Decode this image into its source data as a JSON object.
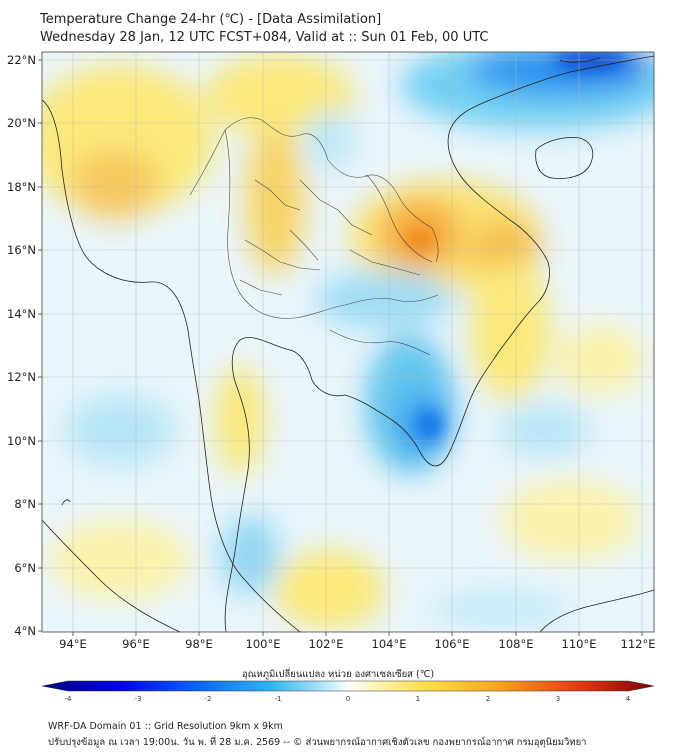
{
  "header": {
    "title": "Temperature Change 24-hr (℃) - [Data Assimilation]",
    "subtitle": "Wednesday 28 Jan, 12 UTC FCST+084, Valid at :: Sun 01 Feb, 00 UTC"
  },
  "map": {
    "lat_labels": [
      "22°N",
      "20°N",
      "18°N",
      "16°N",
      "14°N",
      "12°N",
      "10°N",
      "8°N",
      "6°N",
      "4°N"
    ],
    "lon_labels": [
      "94°E",
      "96°E",
      "98°E",
      "100°E",
      "102°E",
      "104°E",
      "106°E",
      "108°E",
      "110°E",
      "112°E"
    ],
    "lat_range": [
      4,
      22.3
    ],
    "lon_range": [
      93,
      112.4
    ]
  },
  "colorbar": {
    "title": "อุณหภูมิเปลี่ยนแปลง หน่วย องศาเซลเซียส (℃)",
    "ticks": [
      "-4",
      "-3",
      "-2",
      "-1",
      "0",
      "1",
      "2",
      "3",
      "4"
    ],
    "range": [
      -4,
      4
    ]
  },
  "footer": {
    "line1": "WRF-DA Domain 01 :: Grid Resolution 9km x 9km",
    "line2": "ปรับปรุงข้อมูล ณ เวลา 19:00น. วัน พ. ที่ 28 ม.ค. 2569 -- © ส่วนพยากรณ์อากาศเชิงตัวเลข กองพยากรณ์อากาศ กรมอุตุนิยมวิทยา"
  },
  "colors": {
    "cold_extreme": "#00007f",
    "cold": "#1e90ff",
    "cool": "#6ecff6",
    "neutral": "#ffffff",
    "warm": "#fdeb70",
    "hot": "#f4a32b",
    "hot_extreme": "#7f0000"
  }
}
